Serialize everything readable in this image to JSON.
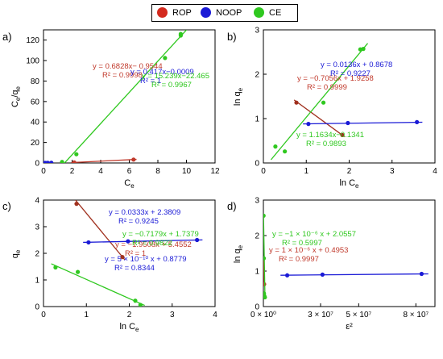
{
  "legend": {
    "items": [
      {
        "label": "ROP",
        "color": "#d42a1e"
      },
      {
        "label": "NOOP",
        "color": "#1a1ad6"
      },
      {
        "label": "CE",
        "color": "#2fc81f"
      }
    ]
  },
  "chart_data": [
    {
      "type": "scatter",
      "panel": "a)",
      "xlabel": "C",
      "xlabel_sub": "e",
      "ylabel": "C",
      "ylabel_sub": "e",
      "ylabel_mid": "/q",
      "ylabel_sub2": "e",
      "xlim": [
        0,
        12
      ],
      "ylim": [
        0,
        130
      ],
      "xticks": [
        0,
        2,
        4,
        6,
        8,
        10,
        12
      ],
      "yticks": [
        0,
        20,
        40,
        60,
        80,
        100,
        120
      ],
      "series": [
        {
          "name": "ROP",
          "color": "#c0392b",
          "x": [
            2.15,
            6.3
          ],
          "y": [
            0.5,
            3.3
          ],
          "fit": {
            "slope": 0.6828,
            "intercept": -0.9544
          },
          "equation": "y = 0.6828x− 0.9544",
          "r2": "R² = 0.9998"
        },
        {
          "name": "NOOP",
          "color": "#1a1ad6",
          "x": [
            0.05,
            0.15,
            0.3,
            0.55
          ],
          "y": [
            0.02,
            0.06,
            0.12,
            0.23
          ],
          "fit": {
            "slope": 0.417,
            "intercept": -0.0009
          },
          "equation": "y = 0.417x−0.0009",
          "r2": "R² = 1"
        },
        {
          "name": "CE",
          "color": "#2fc81f",
          "x": [
            1.3,
            2.3,
            8.5,
            9.6,
            9.6
          ],
          "y": [
            1.0,
            8.5,
            102.5,
            124.5,
            126.0
          ],
          "fit": {
            "slope": 15.239,
            "intercept": -22.465
          },
          "equation": "y = 15.239x−22.465",
          "r2": "R² = 0.9967"
        }
      ]
    },
    {
      "type": "scatter",
      "panel": "b)",
      "xlabel": "ln C",
      "xlabel_sub": "e",
      "ylabel": "ln q",
      "ylabel_sub": "e",
      "xlim": [
        0,
        4
      ],
      "ylim": [
        0,
        3
      ],
      "xticks": [
        0,
        1,
        2,
        3,
        4
      ],
      "yticks": [
        0,
        1,
        2,
        3
      ],
      "series": [
        {
          "name": "ROP",
          "color": "#a0301e",
          "x": [
            0.77,
            1.84
          ],
          "y": [
            1.36,
            0.63
          ],
          "fit": {
            "slope": -0.7056,
            "intercept": 1.9258
          },
          "equation": "y = −0.7056x + 1.9258",
          "r2": "R² = 0.9999"
        },
        {
          "name": "NOOP",
          "color": "#1a1ad6",
          "x": [
            1.05,
            1.97,
            3.58
          ],
          "y": [
            0.88,
            0.9,
            0.92
          ],
          "fit": {
            "slope": 0.0136,
            "intercept": 0.8678
          },
          "equation": "y = 0.0136x + 0.8678",
          "r2": "R² = 0.9227"
        },
        {
          "name": "CE",
          "color": "#2fc81f",
          "x": [
            0.28,
            0.5,
            1.4,
            2.26,
            2.33
          ],
          "y": [
            0.37,
            0.26,
            1.36,
            2.56,
            2.57
          ],
          "fit": {
            "slope": 1.1634,
            "intercept": -0.1341
          },
          "equation": "y = 1.1634x−0.1341",
          "r2": "R² = 0.9893"
        }
      ]
    },
    {
      "type": "scatter",
      "panel": "c)",
      "xlabel": "ln C",
      "xlabel_sub": "e",
      "ylabel": "q",
      "ylabel_sub": "e",
      "xlim": [
        0,
        4
      ],
      "ylim": [
        0,
        4
      ],
      "xticks": [
        0,
        1,
        2,
        3,
        4
      ],
      "yticks": [
        0,
        1,
        2,
        3,
        4
      ],
      "series": [
        {
          "name": "ROP",
          "color": "#a0301e",
          "x": [
            0.77,
            1.84
          ],
          "y": [
            3.86,
            1.86
          ],
          "fit": {
            "slope": -1.9508,
            "intercept": 5.4552
          },
          "equation": "y = −1.9508x + 5.4552",
          "r2": "R² = 1"
        },
        {
          "name": "NOOP",
          "color": "#1a1ad6",
          "x": [
            1.05,
            1.97,
            3.58
          ],
          "y": [
            2.41,
            2.45,
            2.5
          ],
          "fit": {
            "slope": 0.0333,
            "intercept": 2.3809
          },
          "equation": "y = 0.0333x + 2.3809",
          "r2": "R² = 0.9245"
        },
        {
          "name": "CE",
          "color": "#2fc81f",
          "x": [
            0.28,
            0.8,
            2.14,
            2.26
          ],
          "y": [
            1.47,
            1.3,
            0.22,
            0.06
          ],
          "fit": {
            "slope": -0.7179,
            "intercept": 1.7379
          },
          "equation": "y = −0.7179x + 1.7379",
          "r2": "R² = 0.9822"
        }
      ]
    },
    {
      "type": "scatter",
      "panel": "d)",
      "xlabel": "ε²",
      "ylabel": "ln q",
      "ylabel_sub": "e",
      "xlim": [
        0,
        90000000
      ],
      "ylim": [
        0,
        3
      ],
      "xticks": [
        0,
        30000000,
        50000000,
        80000000
      ],
      "xtick_labels": [
        "0 × 10⁰",
        "3 × 10⁷",
        "5 × 10⁷",
        "8 × 10⁷"
      ],
      "yticks": [
        0,
        1,
        2,
        3
      ],
      "series": [
        {
          "name": "ROP",
          "color": "#c0392b",
          "x": [
            200000,
            400000
          ],
          "y": [
            1.36,
            0.63
          ],
          "fit": {
            "slope": 1e-06,
            "intercept": 0.4953
          },
          "equation": "y = 1 × 10⁻⁶ x + 0.4953",
          "r2": "R² = 0.9997"
        },
        {
          "name": "NOOP",
          "color": "#1a1ad6",
          "x": [
            12500000,
            31000000,
            83000000
          ],
          "y": [
            0.88,
            0.9,
            0.92
          ],
          "fit": {
            "slope": 5e-10,
            "intercept": 0.8779
          },
          "equation": "y = 5 × 10⁻¹⁰ x + 0.8779",
          "r2": "R² = 0.8344"
        },
        {
          "name": "CE",
          "color": "#2fc81f",
          "x": [
            100000,
            200000,
            300000,
            500000,
            800000
          ],
          "y": [
            2.56,
            1.36,
            0.37,
            0.3,
            0.26
          ],
          "fit": {
            "slope": -1e-06,
            "intercept": 2.0557
          },
          "equation": "y = −1 × 10⁻⁶ x + 2.0557",
          "r2": "R² = 0.5997"
        }
      ]
    }
  ]
}
